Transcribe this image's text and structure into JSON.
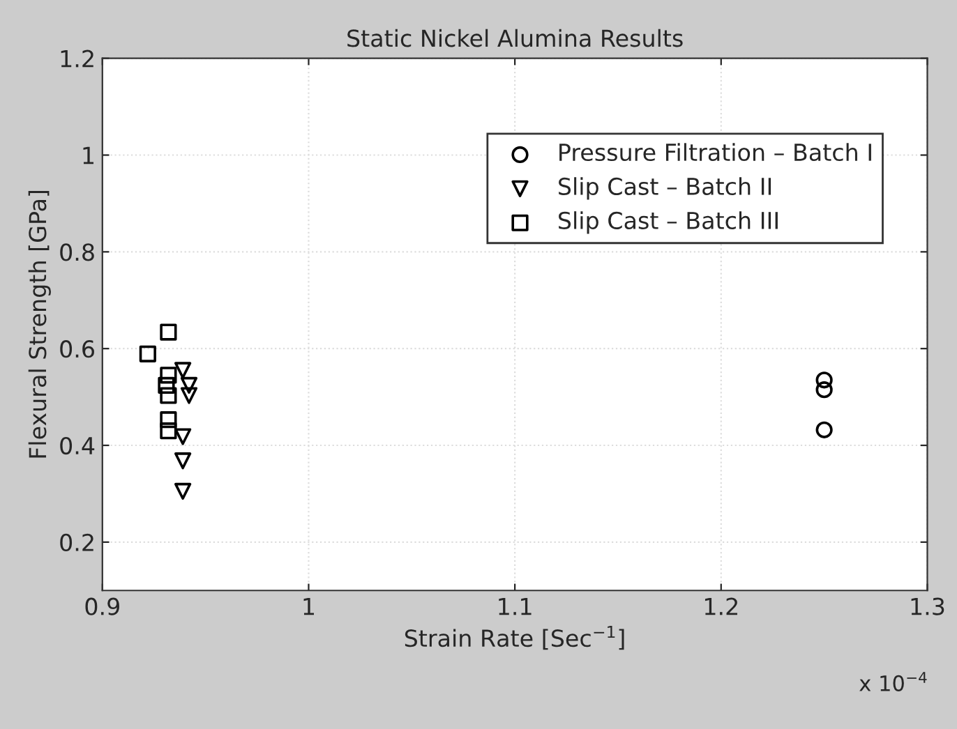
{
  "chart_data": {
    "type": "scatter",
    "title": "Static Nickel Alumina Results",
    "xlabel": "Strain Rate [Sec$^{−1}$]",
    "ylabel": "Flexural Strength [GPa]",
    "annotations": [
      "x 10$^{−4}$"
    ],
    "xlim": [
      0.9,
      1.3
    ],
    "xticks": [
      0.9,
      1,
      1.1,
      1.2,
      1.3
    ],
    "ylim": [
      0.1,
      1.2
    ],
    "yticks": [
      0.2,
      0.4,
      0.6,
      0.8,
      1,
      1.2
    ],
    "grid": true,
    "legend": "top right",
    "series": [
      {
        "name": "Pressure Filtration – Batch I",
        "color": "#000000",
        "marker": "circle",
        "x": [
          1.25,
          1.25,
          1.25
        ],
        "values": [
          0.535,
          0.515,
          0.432
        ]
      },
      {
        "name": "Slip Cast – Batch II",
        "color": "#000000",
        "marker": "triangle",
        "x": [
          0.939,
          0.942,
          0.942,
          0.939,
          0.939,
          0.939
        ],
        "values": [
          0.555,
          0.524,
          0.503,
          0.418,
          0.368,
          0.305
        ]
      },
      {
        "name": "Slip Cast – Batch III",
        "color": "#000000",
        "marker": "square",
        "x": [
          0.932,
          0.922,
          0.932,
          0.931,
          0.932,
          0.932,
          0.932
        ],
        "values": [
          0.634,
          0.589,
          0.545,
          0.524,
          0.503,
          0.453,
          0.43
        ]
      }
    ]
  }
}
